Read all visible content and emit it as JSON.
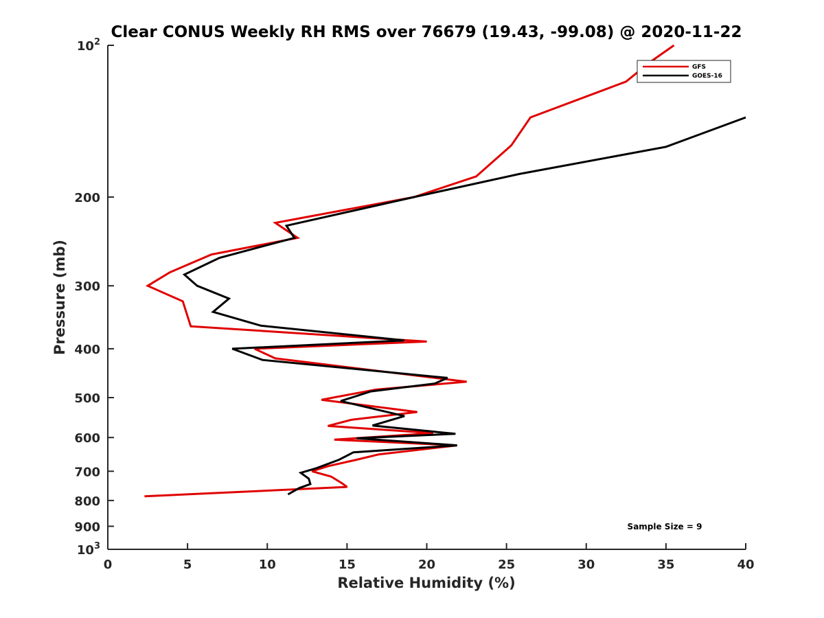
{
  "chart_data": {
    "type": "line",
    "title": "Clear CONUS Weekly RH RMS over 76679 (19.43, -99.08) @ 2020-11-22",
    "xlabel": "Relative Humidity (%)",
    "ylabel": "Pressure (mb)",
    "xlim": [
      0,
      40
    ],
    "ylim": [
      100,
      1000
    ],
    "y_scale": "log",
    "y_reversed": true,
    "x_ticks": [
      0,
      5,
      10,
      15,
      20,
      25,
      30,
      35,
      40
    ],
    "y_ticks": [
      {
        "value": 100,
        "base": "10",
        "exp": "2"
      },
      {
        "value": 200,
        "label": "200"
      },
      {
        "value": 300,
        "label": "300"
      },
      {
        "value": 400,
        "label": "400"
      },
      {
        "value": 500,
        "label": "500"
      },
      {
        "value": 600,
        "label": "600"
      },
      {
        "value": 700,
        "label": "700"
      },
      {
        "value": 800,
        "label": "800"
      },
      {
        "value": 900,
        "label": "900"
      },
      {
        "value": 1000,
        "base": "10",
        "exp": "3"
      }
    ],
    "grid": false,
    "legend_position": "top-right",
    "annotation": "Sample Size = 9",
    "series": [
      {
        "name": "GFS",
        "color": "#e00000",
        "points": [
          [
            35.5,
            100
          ],
          [
            34.0,
            108
          ],
          [
            32.5,
            118
          ],
          [
            26.5,
            139
          ],
          [
            25.3,
            158
          ],
          [
            23.1,
            182
          ],
          [
            19.2,
            200
          ],
          [
            10.5,
            225
          ],
          [
            11.9,
            241
          ],
          [
            6.5,
            260
          ],
          [
            3.9,
            282
          ],
          [
            2.5,
            300
          ],
          [
            4.7,
            322
          ],
          [
            5.2,
            361
          ],
          [
            20.0,
            387
          ],
          [
            9.2,
            400
          ],
          [
            10.5,
            418
          ],
          [
            22.5,
            465
          ],
          [
            16.8,
            482
          ],
          [
            13.4,
            505
          ],
          [
            19.4,
            534
          ],
          [
            15.3,
            553
          ],
          [
            13.8,
            569
          ],
          [
            20.4,
            588
          ],
          [
            14.2,
            606
          ],
          [
            21.9,
            622
          ],
          [
            17.0,
            648
          ],
          [
            15.6,
            664
          ],
          [
            13.8,
            684
          ],
          [
            12.8,
            700
          ],
          [
            14.0,
            717
          ],
          [
            14.7,
            740
          ],
          [
            15.0,
            752
          ],
          [
            2.3,
            785
          ]
        ]
      },
      {
        "name": "GOES-16",
        "color": "#000000",
        "points": [
          [
            40.0,
            139
          ],
          [
            35.0,
            159
          ],
          [
            25.8,
            180
          ],
          [
            19.2,
            200
          ],
          [
            11.2,
            228
          ],
          [
            11.7,
            241
          ],
          [
            7.0,
            264
          ],
          [
            4.8,
            285
          ],
          [
            5.6,
            300
          ],
          [
            7.6,
            318
          ],
          [
            6.6,
            338
          ],
          [
            9.6,
            360
          ],
          [
            18.6,
            385
          ],
          [
            7.8,
            400
          ],
          [
            9.7,
            421
          ],
          [
            21.3,
            457
          ],
          [
            20.5,
            469
          ],
          [
            16.5,
            486
          ],
          [
            14.6,
            508
          ],
          [
            18.6,
            544
          ],
          [
            16.6,
            568
          ],
          [
            21.8,
            590
          ],
          [
            15.6,
            602
          ],
          [
            21.9,
            622
          ],
          [
            15.4,
            642
          ],
          [
            14.5,
            664
          ],
          [
            13.1,
            690
          ],
          [
            12.1,
            705
          ],
          [
            12.6,
            724
          ],
          [
            12.7,
            742
          ],
          [
            12.0,
            756
          ],
          [
            11.3,
            778
          ]
        ]
      }
    ]
  }
}
